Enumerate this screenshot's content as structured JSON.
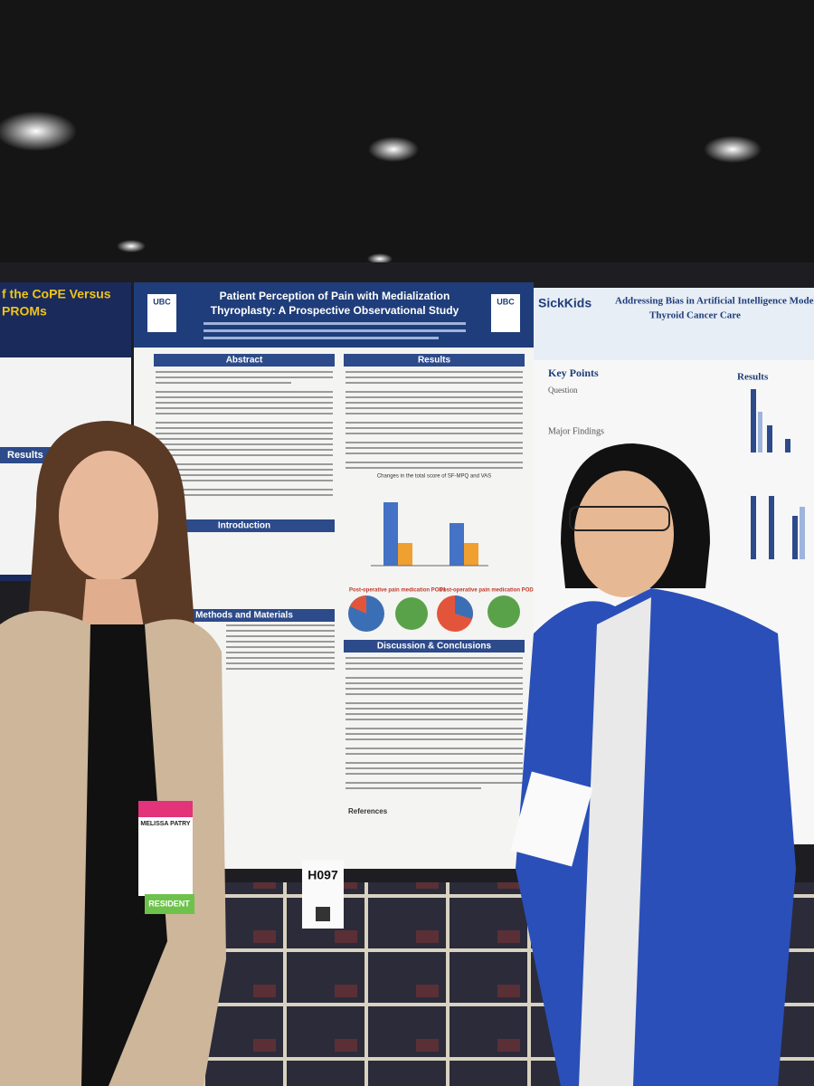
{
  "left_poster": {
    "title_line1": "f the CoPE Versus",
    "title_line2": "PROMs",
    "section": "Results"
  },
  "center_poster": {
    "logo_left": "UBC",
    "logo_right": "UBC",
    "title_line1": "Patient Perception of Pain with Medialization",
    "title_line2": "Thyroplasty: A Prospective Observational Study",
    "sections": [
      "Abstract",
      "Results",
      "Introduction",
      "Methods and Materials",
      "Discussion & Conclusions",
      "References"
    ],
    "chart_title": "Changes in the total score of SF-MPQ and VAS",
    "pie_title_1": "Post-operative pain medication POD1",
    "pie_title_2": "Post-operative pain medication POD7"
  },
  "board_number": "H097",
  "right_poster": {
    "brand": "SickKids",
    "title_line1": "Addressing Bias in Artificial Intelligence Models",
    "title_line2": "Thyroid Cancer Care",
    "sections": [
      "Key Points",
      "Question",
      "Major Findings",
      "Results"
    ]
  },
  "badge": {
    "name": "MELISSA PATRY",
    "role": "RESIDENT"
  }
}
